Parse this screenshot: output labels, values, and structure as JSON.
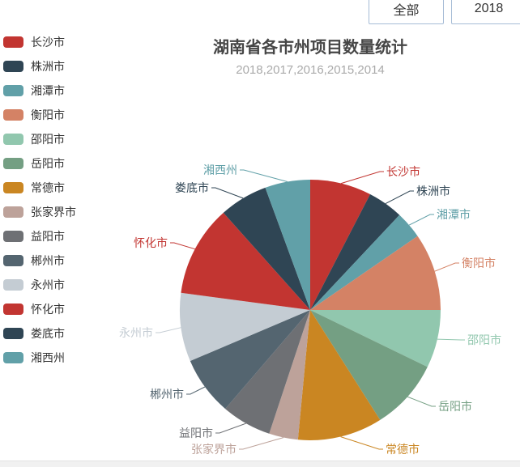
{
  "toolbar": {
    "all_label": "全部",
    "year_label": "2018"
  },
  "chart_data": {
    "type": "pie",
    "title": "湖南省各市州项目数量统计",
    "subtitle": "2018,2017,2016,2015,2014",
    "legend_position": "left",
    "unit": "percent-estimated-from-slice-angles",
    "series": [
      {
        "name": "长沙市",
        "value": 7.6,
        "color": "#c23531"
      },
      {
        "name": "株洲市",
        "value": 4.4,
        "color": "#2f4554"
      },
      {
        "name": "湘潭市",
        "value": 3.4,
        "color": "#61a0a8"
      },
      {
        "name": "衡阳市",
        "value": 9.6,
        "color": "#d48265"
      },
      {
        "name": "邵阳市",
        "value": 7.2,
        "color": "#91c7ae"
      },
      {
        "name": "岳阳市",
        "value": 8.8,
        "color": "#749f83"
      },
      {
        "name": "常德市",
        "value": 10.5,
        "color": "#ca8622"
      },
      {
        "name": "张家界市",
        "value": 3.6,
        "color": "#bda29a"
      },
      {
        "name": "益阳市",
        "value": 6.2,
        "color": "#6e7074"
      },
      {
        "name": "郴州市",
        "value": 7.3,
        "color": "#546570"
      },
      {
        "name": "永州市",
        "value": 8.5,
        "color": "#c4ccd3"
      },
      {
        "name": "怀化市",
        "value": 11.3,
        "color": "#c23531"
      },
      {
        "name": "娄底市",
        "value": 6.0,
        "color": "#2f4554"
      },
      {
        "name": "湘西州",
        "value": 5.6,
        "color": "#61a0a8"
      }
    ]
  }
}
